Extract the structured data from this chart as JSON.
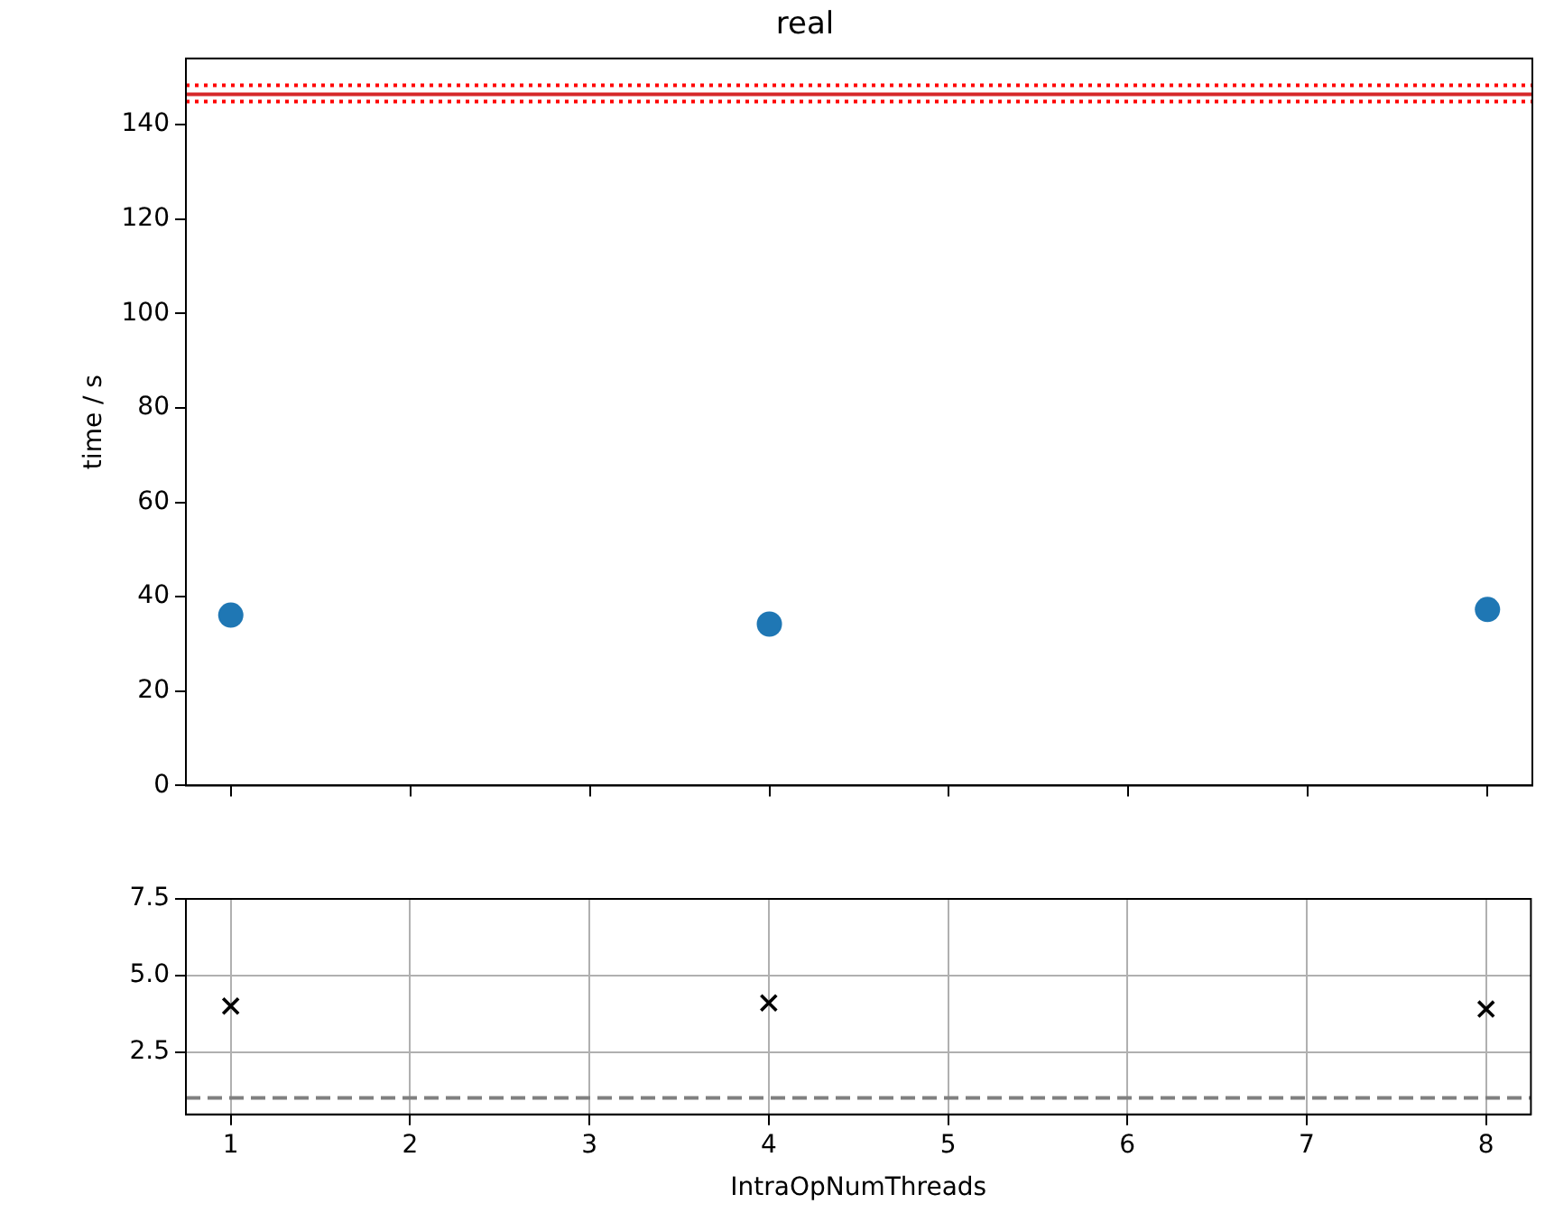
{
  "chart_data": [
    {
      "type": "scatter",
      "title": "real",
      "ylabel": "time / s",
      "x": [
        1,
        4,
        8
      ],
      "marker": "circle",
      "series": [
        {
          "color": "#1f77b4",
          "values": [
            36.1,
            34.2,
            37.3
          ]
        }
      ],
      "xlim": [
        0.75,
        8.25
      ],
      "xticks": [
        {
          "value": 1,
          "label": null
        },
        {
          "value": 2,
          "label": null
        },
        {
          "value": 3,
          "label": null
        },
        {
          "value": 4,
          "label": null
        },
        {
          "value": 5,
          "label": null
        },
        {
          "value": 6,
          "label": null
        },
        {
          "value": 7,
          "label": null
        },
        {
          "value": 8,
          "label": null
        }
      ],
      "ylim": [
        0,
        154
      ],
      "yticks": [
        0,
        20,
        40,
        60,
        80,
        100,
        120,
        140
      ],
      "tick_labels": "y",
      "grid": false,
      "ref_lines": [
        {
          "axis": "y",
          "value": 146.4,
          "color": "#d62728",
          "line_style": "solid"
        },
        {
          "axis": "y",
          "value": 148.3,
          "color": "#ff0000",
          "line_style": "dotted"
        },
        {
          "axis": "y",
          "value": 144.9,
          "color": "#ff0000",
          "line_style": "dotted"
        }
      ]
    },
    {
      "type": "scatter",
      "xlabel": "IntraOpNumThreads",
      "x": [
        1,
        4,
        8
      ],
      "marker": "cross",
      "series": [
        {
          "color": "#000000",
          "values": [
            4.0,
            4.1,
            3.9
          ]
        }
      ],
      "xlim": [
        0.75,
        8.25
      ],
      "xticks": [
        1,
        2,
        3,
        4,
        5,
        6,
        7,
        8
      ],
      "ylim": [
        0.46,
        7.5
      ],
      "yticks": [
        2.5,
        {
          "value": 5,
          "label": "5.0"
        },
        7.5
      ],
      "grid": true,
      "ref_lines": [
        {
          "axis": "y",
          "value": 1,
          "color": "#808080",
          "line_style": "dashed"
        }
      ]
    }
  ]
}
